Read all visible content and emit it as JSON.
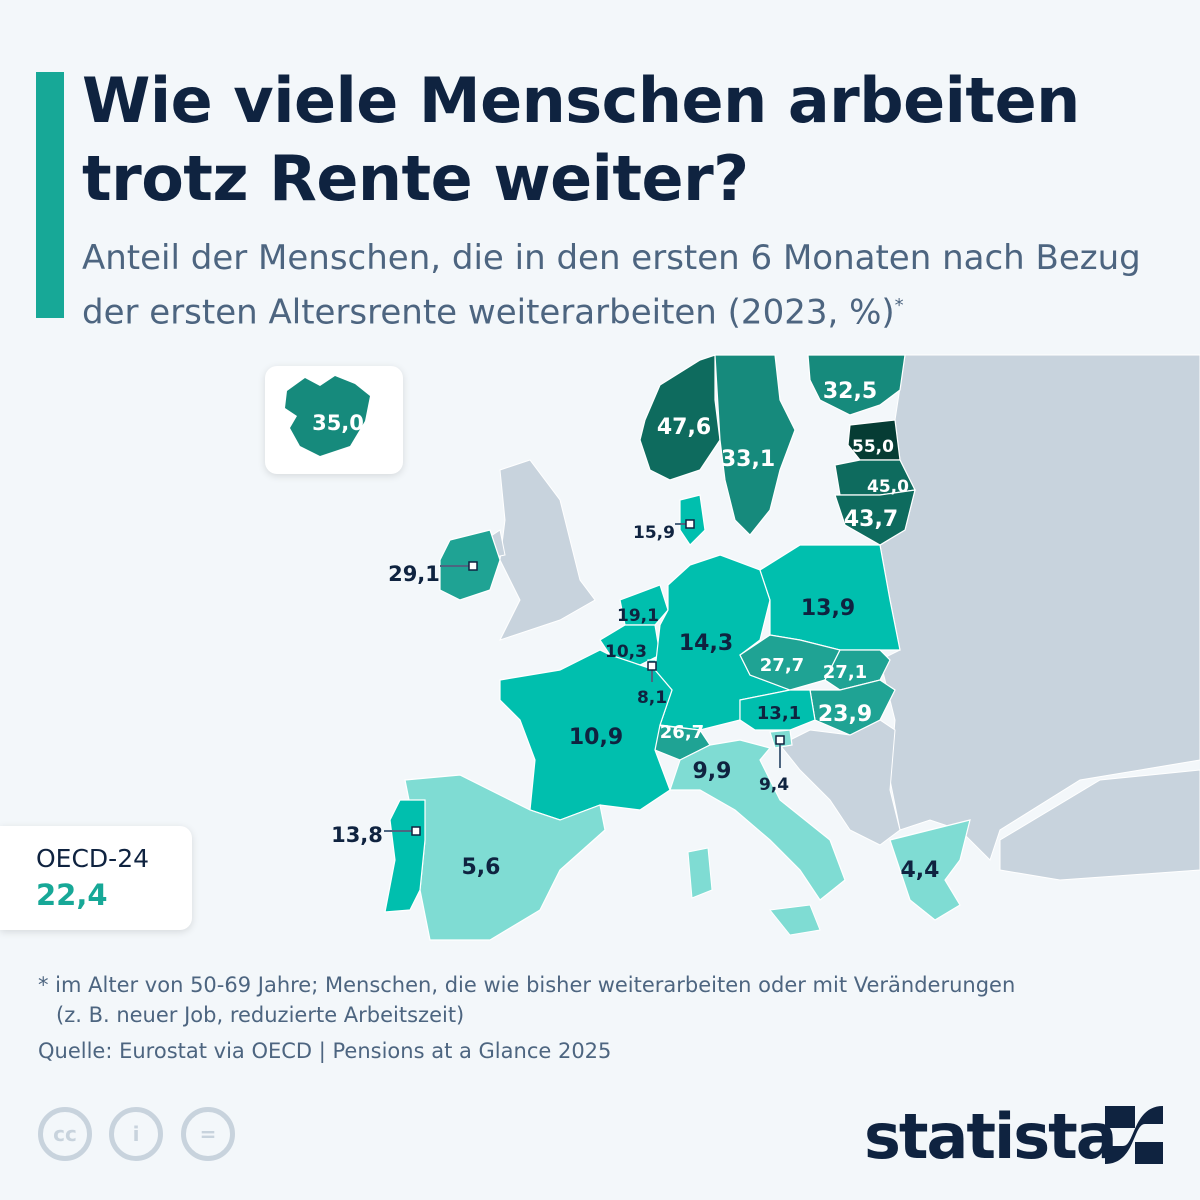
{
  "header": {
    "title": "Wie viele Menschen arbeiten trotz Rente weiter?",
    "subtitle": "Anteil der Menschen, die in den ersten 6 Monaten nach Bezug der ersten Altersrente weiterarbeiten (2023, %)",
    "subtitle_mark": "*"
  },
  "oecd": {
    "label": "OECD-24",
    "value": "22,4"
  },
  "footer": {
    "note_line1": "* im Alter von 50-69 Jahre; Menschen, die wie bisher weiterarbeiten oder mit Veränderungen",
    "note_line2": "(z. B. neuer Job, reduzierte Arbeitszeit)",
    "source": "Quelle: Eurostat via OECD | Pensions at a Glance 2025",
    "brand": "statista"
  },
  "icons": [
    "cc-icon",
    "attribution-icon",
    "no-derivatives-icon",
    "statista-logo-icon"
  ],
  "colors": {
    "accent": "#17a897",
    "title": "#0f2340",
    "no_data": "#c8d3dd",
    "scale": [
      "#7fdcd3",
      "#00bfae",
      "#1fa394",
      "#168a7c",
      "#0e6b5e",
      "#063c34"
    ]
  },
  "chart_data": {
    "type": "choropleth",
    "regions": [
      {
        "value": "35,0",
        "color": "#168a7c"
      },
      {
        "value": "47,6",
        "color": "#0e6b5e"
      },
      {
        "value": "33,1",
        "color": "#168a7c"
      },
      {
        "value": "32,5",
        "color": "#168a7c"
      },
      {
        "value": "55,0",
        "color": "#063c34"
      },
      {
        "value": "45,0",
        "color": "#0e6b5e"
      },
      {
        "value": "43,7",
        "color": "#0e6b5e"
      },
      {
        "value": "15,9",
        "color": "#00bfae"
      },
      {
        "value": "29,1",
        "color": "#1fa394"
      },
      {
        "value": "19,1",
        "color": "#00bfae"
      },
      {
        "value": "10,3",
        "color": "#00bfae"
      },
      {
        "value": "8,1",
        "color": "#00bfae"
      },
      {
        "value": "14,3",
        "color": "#00bfae"
      },
      {
        "value": "13,9",
        "color": "#00bfae"
      },
      {
        "value": "27,7",
        "color": "#1fa394"
      },
      {
        "value": "27,1",
        "color": "#1fa394"
      },
      {
        "value": "23,9",
        "color": "#1fa394"
      },
      {
        "value": "13,1",
        "color": "#00bfae"
      },
      {
        "value": "26,7",
        "color": "#1fa394"
      },
      {
        "value": "9,4",
        "color": "#7fdcd3"
      },
      {
        "value": "10,9",
        "color": "#00bfae"
      },
      {
        "value": "9,9",
        "color": "#7fdcd3"
      },
      {
        "value": "5,6",
        "color": "#7fdcd3"
      },
      {
        "value": "13,8",
        "color": "#00bfae"
      },
      {
        "value": "4,4",
        "color": "#7fdcd3"
      }
    ]
  }
}
